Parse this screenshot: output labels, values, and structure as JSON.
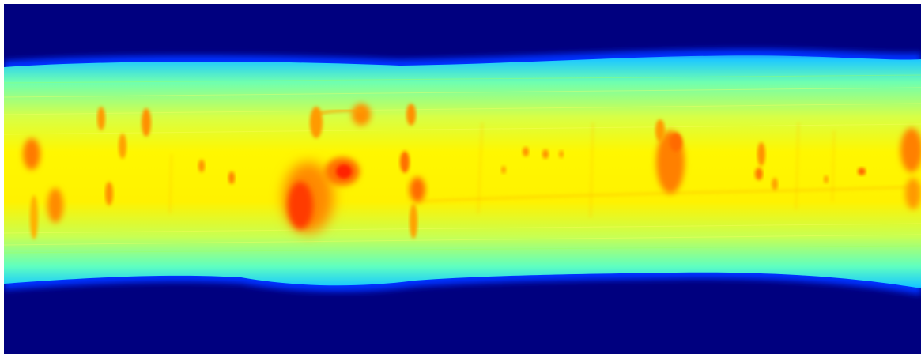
{
  "image": {
    "kind": "jet-colormap intensity map",
    "colormap": [
      "#00007f",
      "#0000ff",
      "#00ffff",
      "#7fff7f",
      "#ffff00",
      "#ff7f00",
      "#ff0000"
    ],
    "background": "#00007f",
    "frame": "#ffffff"
  }
}
